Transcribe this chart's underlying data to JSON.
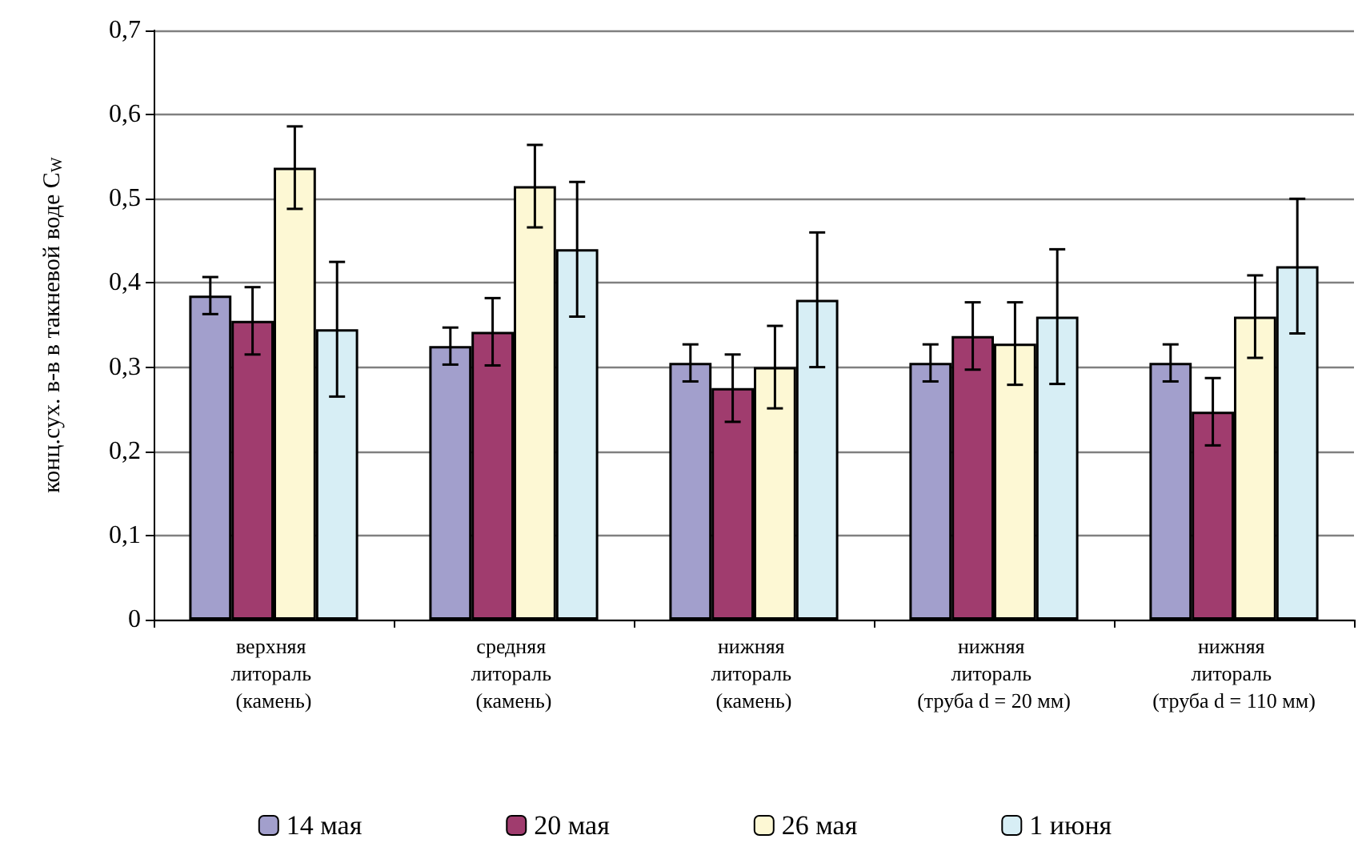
{
  "chart_data": {
    "type": "bar",
    "ylabel": "конц.сух. в-в в такневой воде C$_{W}$",
    "categories": [
      "верхняя литораль (камень)",
      "средняя литораль (камень)",
      "нижняя литораль (камень)",
      "нижняя литораль (труба d = 20 мм)",
      "нижняя литораль (труба d = 110 мм)"
    ],
    "series": [
      {
        "name": "14 мая",
        "color": "#a29fcc",
        "values": [
          0.385,
          0.325,
          0.305,
          0.305,
          0.305
        ],
        "errors": [
          0.022,
          0.022,
          0.022,
          0.022,
          0.022
        ]
      },
      {
        "name": "20 мая",
        "color": "#a03c6e",
        "values": [
          0.355,
          0.342,
          0.275,
          0.337,
          0.247
        ],
        "errors": [
          0.04,
          0.04,
          0.04,
          0.04,
          0.04
        ]
      },
      {
        "name": "26 мая",
        "color": "#fdf8d4",
        "values": [
          0.537,
          0.515,
          0.3,
          0.328,
          0.36
        ],
        "errors": [
          0.049,
          0.049,
          0.049,
          0.049,
          0.049
        ]
      },
      {
        "name": "1 июня",
        "color": "#d7eef5",
        "values": [
          0.345,
          0.44,
          0.38,
          0.36,
          0.42
        ],
        "errors": [
          0.08,
          0.08,
          0.08,
          0.08,
          0.08
        ]
      }
    ],
    "ylim": [
      0,
      0.7
    ],
    "yticks": [
      0,
      {
        "value": 0.1,
        "label": "0,1"
      },
      {
        "value": 0.2,
        "label": "0,2"
      },
      {
        "value": 0.3,
        "label": "0,3"
      },
      {
        "value": 0.4,
        "label": "0,4"
      },
      {
        "value": 0.5,
        "label": "0,5"
      },
      {
        "value": 0.6,
        "label": "0,6"
      },
      {
        "value": 0.7,
        "label": "0,7"
      }
    ],
    "grid": "y",
    "legend": "bottom"
  }
}
